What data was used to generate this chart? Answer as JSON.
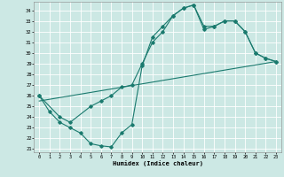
{
  "xlabel": "Humidex (Indice chaleur)",
  "bg_color": "#cce8e4",
  "grid_color": "#ffffff",
  "line_color": "#1a7a6e",
  "xlim": [
    -0.5,
    23.5
  ],
  "ylim": [
    20.7,
    34.8
  ],
  "xticks": [
    0,
    1,
    2,
    3,
    4,
    5,
    6,
    7,
    8,
    9,
    10,
    11,
    12,
    13,
    14,
    15,
    16,
    17,
    18,
    19,
    20,
    21,
    22,
    23
  ],
  "yticks": [
    21,
    22,
    23,
    24,
    25,
    26,
    27,
    28,
    29,
    30,
    31,
    32,
    33,
    34
  ],
  "line1_x": [
    0,
    1,
    2,
    3,
    4,
    5,
    6,
    7,
    8,
    9,
    10,
    11,
    12,
    13,
    14,
    15,
    16,
    17,
    18,
    19,
    20,
    21,
    22,
    23
  ],
  "line1_y": [
    26.0,
    24.5,
    23.5,
    23.0,
    22.5,
    21.5,
    21.3,
    21.2,
    22.5,
    23.3,
    28.8,
    31.5,
    32.5,
    33.5,
    34.2,
    34.5,
    32.2,
    32.5,
    33.0,
    33.0,
    32.0,
    30.0,
    29.5,
    29.2
  ],
  "line2_x": [
    0,
    2,
    3,
    5,
    6,
    7,
    8,
    9,
    10,
    11,
    12,
    13,
    14,
    15,
    16,
    17,
    18,
    19,
    20,
    21,
    22,
    23
  ],
  "line2_y": [
    26.0,
    24.0,
    23.5,
    25.0,
    25.5,
    26.0,
    26.8,
    27.0,
    29.0,
    31.0,
    32.0,
    33.5,
    34.2,
    34.5,
    32.5,
    32.5,
    33.0,
    33.0,
    32.0,
    30.0,
    29.5,
    29.2
  ],
  "line3_x": [
    0,
    23
  ],
  "line3_y": [
    25.5,
    29.2
  ]
}
